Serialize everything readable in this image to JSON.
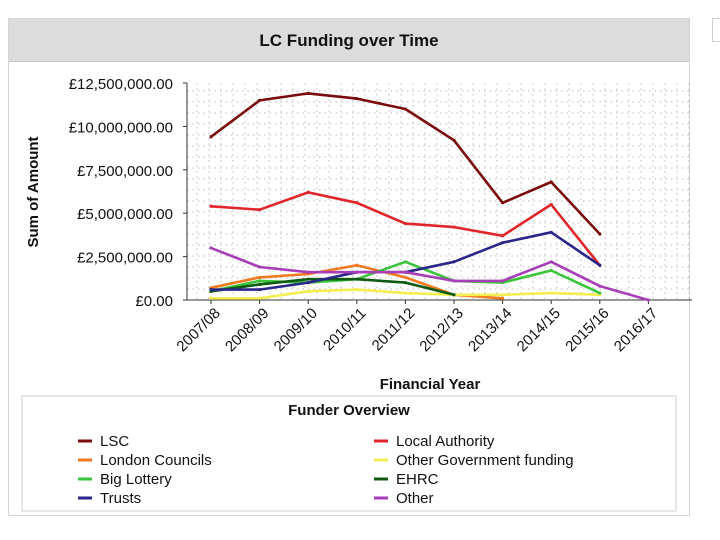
{
  "chart_data": {
    "type": "line",
    "title": "LC Funding over Time",
    "xlabel": "Financial Year",
    "ylabel": "Sum of Amount",
    "ylim": [
      0,
      12500000
    ],
    "y_ticks": [
      0,
      2500000,
      5000000,
      7500000,
      10000000,
      12500000
    ],
    "y_tick_labels": [
      "£0.00",
      "£2,500,000.00",
      "£5,000,000.00",
      "£7,500,000.00",
      "£10,000,000.00",
      "£12,500,000.00"
    ],
    "grid": true,
    "categories": [
      "2007/08",
      "2008/09",
      "2009/10",
      "2010/11",
      "2011/12",
      "2012/13",
      "2013/14",
      "2014/15",
      "2015/16",
      "2016/17"
    ],
    "legend_title": "Funder Overview",
    "series": [
      {
        "name": "LSC",
        "color": "#7a0c0c",
        "values": [
          9400000,
          11500000,
          11900000,
          11600000,
          11000000,
          9200000,
          5600000,
          6800000,
          3800000,
          null
        ]
      },
      {
        "name": "Local Authority",
        "color": "#e0262b",
        "values": [
          5400000,
          5200000,
          6200000,
          5600000,
          4400000,
          4200000,
          3700000,
          5500000,
          2000000,
          null
        ]
      },
      {
        "name": "London Councils",
        "color": "#f07a20",
        "values": [
          700000,
          1300000,
          1500000,
          2000000,
          1300000,
          300000,
          100000,
          null,
          null,
          null
        ]
      },
      {
        "name": "Other Government funding",
        "color": "#f2ee52",
        "values": [
          100000,
          100000,
          500000,
          600000,
          400000,
          300000,
          300000,
          400000,
          300000,
          null
        ]
      },
      {
        "name": "Big Lottery",
        "color": "#3bc43b",
        "values": [
          500000,
          1100000,
          1000000,
          1200000,
          2200000,
          1100000,
          1000000,
          1700000,
          400000,
          null
        ]
      },
      {
        "name": "EHRC",
        "color": "#0d5a12",
        "values": [
          500000,
          900000,
          1200000,
          1200000,
          1000000,
          300000,
          null,
          null,
          null,
          null
        ]
      },
      {
        "name": "Trusts",
        "color": "#29288a",
        "values": [
          600000,
          600000,
          1000000,
          1600000,
          1600000,
          2200000,
          3300000,
          3900000,
          2000000,
          null
        ]
      },
      {
        "name": "Other",
        "color": "#a83db8",
        "values": [
          3000000,
          1900000,
          1600000,
          1600000,
          1600000,
          1100000,
          1100000,
          2200000,
          800000,
          0
        ]
      }
    ]
  }
}
